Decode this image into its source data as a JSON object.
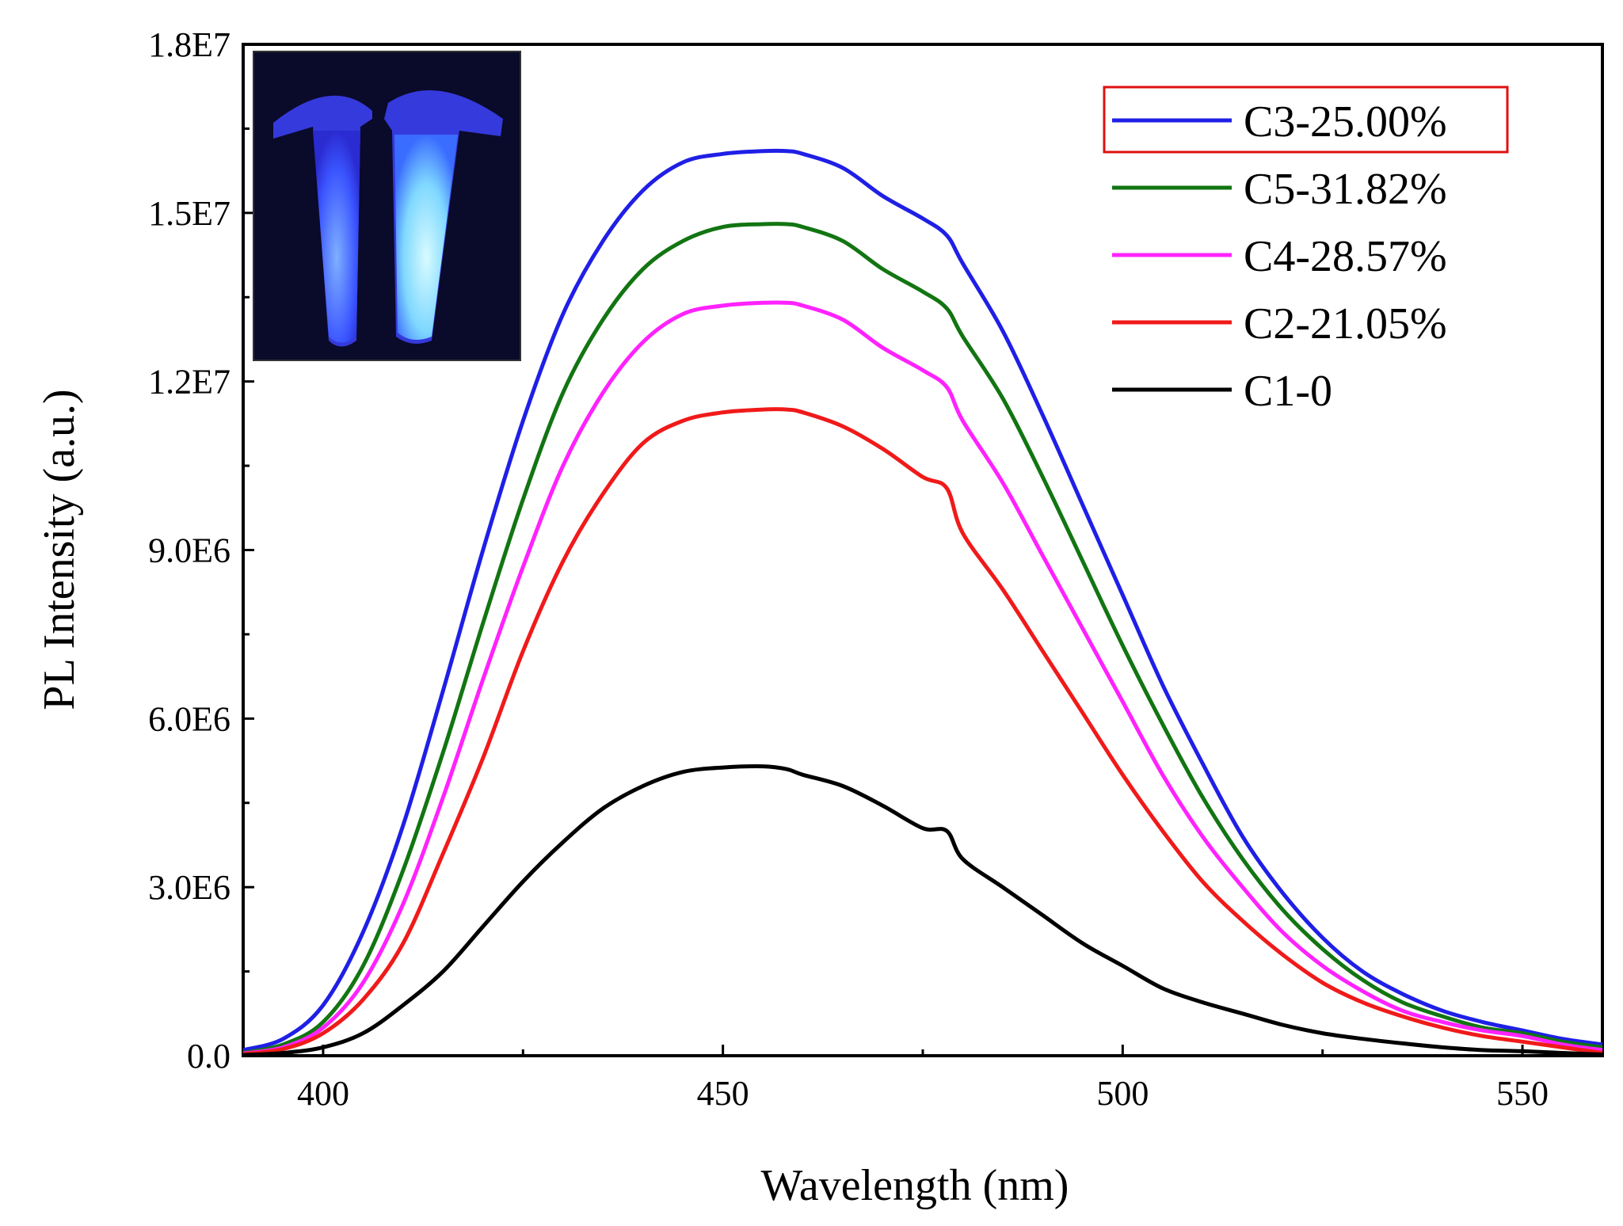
{
  "chart_data": {
    "type": "line",
    "xlabel": "Wavelength (nm)",
    "ylabel": "PL Intensity (a.u.)",
    "xlim": [
      390,
      560
    ],
    "ylim": [
      0,
      18000000
    ],
    "xticks": [
      400,
      450,
      500,
      550
    ],
    "xtick_labels": [
      "400",
      "450",
      "500",
      "550"
    ],
    "yticks": [
      0,
      3000000,
      6000000,
      9000000,
      12000000,
      15000000,
      18000000
    ],
    "ytick_labels": [
      "0.0",
      "3.0E6",
      "6.0E6",
      "9.0E6",
      "1.2E7",
      "1.5E7",
      "1.8E7"
    ],
    "legend_position": "top-right",
    "highlighted_legend_entry": "C3-25.00%",
    "inset": "photo of two vials glowing blue under UV light (top-left)",
    "x": [
      390,
      395,
      400,
      405,
      410,
      415,
      420,
      425,
      430,
      435,
      440,
      445,
      450,
      455,
      458,
      460,
      465,
      470,
      475,
      478,
      480,
      485,
      490,
      495,
      500,
      505,
      510,
      515,
      520,
      525,
      530,
      535,
      540,
      545,
      550,
      555,
      560
    ],
    "series": [
      {
        "name": "C3-25.00%",
        "color": "#1f1fe6",
        "values": [
          0.1,
          0.3,
          0.9,
          2.2,
          4.1,
          6.5,
          9.0,
          11.3,
          13.2,
          14.5,
          15.4,
          15.9,
          16.05,
          16.1,
          16.1,
          16.05,
          15.8,
          15.3,
          14.9,
          14.6,
          14.1,
          12.9,
          11.4,
          9.8,
          8.2,
          6.6,
          5.2,
          3.9,
          2.9,
          2.1,
          1.5,
          1.1,
          0.8,
          0.6,
          0.45,
          0.3,
          0.2
        ]
      },
      {
        "name": "C5-31.82%",
        "color": "#127512",
        "values": [
          0.05,
          0.2,
          0.6,
          1.6,
          3.3,
          5.4,
          7.7,
          9.9,
          11.8,
          13.1,
          14.0,
          14.5,
          14.75,
          14.8,
          14.8,
          14.75,
          14.5,
          14.0,
          13.6,
          13.3,
          12.8,
          11.7,
          10.3,
          8.8,
          7.3,
          5.9,
          4.6,
          3.5,
          2.6,
          1.9,
          1.35,
          0.95,
          0.7,
          0.5,
          0.4,
          0.25,
          0.15
        ]
      },
      {
        "name": "C4-28.57%",
        "color": "#ff22ff",
        "values": [
          0.04,
          0.15,
          0.5,
          1.3,
          2.7,
          4.6,
          6.7,
          8.7,
          10.5,
          11.8,
          12.7,
          13.2,
          13.35,
          13.4,
          13.4,
          13.35,
          13.1,
          12.6,
          12.2,
          11.9,
          11.3,
          10.2,
          8.9,
          7.6,
          6.3,
          5.0,
          3.9,
          3.0,
          2.2,
          1.6,
          1.15,
          0.8,
          0.6,
          0.45,
          0.35,
          0.2,
          0.1
        ]
      },
      {
        "name": "C2-21.05%",
        "color": "#f01a1a",
        "values": [
          0.03,
          0.12,
          0.4,
          1.0,
          2.0,
          3.6,
          5.3,
          7.2,
          8.8,
          10.0,
          10.9,
          11.3,
          11.45,
          11.5,
          11.5,
          11.45,
          11.2,
          10.8,
          10.3,
          10.1,
          9.3,
          8.3,
          7.2,
          6.1,
          5.0,
          4.0,
          3.1,
          2.4,
          1.8,
          1.3,
          0.95,
          0.7,
          0.5,
          0.35,
          0.25,
          0.15,
          0.05
        ]
      },
      {
        "name": "C1-0",
        "color": "#000000",
        "values": [
          0.01,
          0.05,
          0.15,
          0.4,
          0.9,
          1.5,
          2.3,
          3.1,
          3.8,
          4.4,
          4.8,
          5.05,
          5.13,
          5.15,
          5.1,
          5.0,
          4.8,
          4.45,
          4.05,
          4.0,
          3.5,
          3.0,
          2.5,
          2.0,
          1.6,
          1.2,
          0.95,
          0.75,
          0.55,
          0.4,
          0.3,
          0.22,
          0.15,
          0.1,
          0.08,
          0.05,
          0.02
        ]
      }
    ],
    "values_unit_multiplier": 1000000
  }
}
